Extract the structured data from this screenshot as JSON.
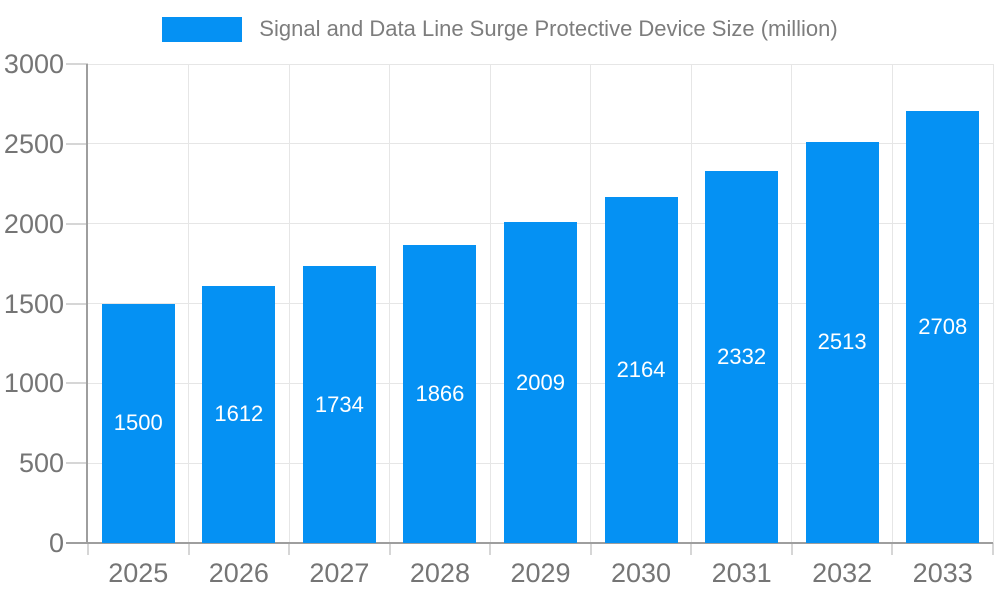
{
  "chart_data": {
    "type": "bar",
    "title": "Signal and Data Line Surge Protective Device Size (million)",
    "legend_label": "Signal and Data Line Surge Protective Device Size (million)",
    "legend_position": "top-center",
    "categories": [
      "2025",
      "2026",
      "2027",
      "2028",
      "2029",
      "2030",
      "2031",
      "2032",
      "2033"
    ],
    "values": [
      1500,
      1612,
      1734,
      1866,
      2009,
      2164,
      2332,
      2513,
      2708
    ],
    "xlabel": "",
    "ylabel": "",
    "ylim": [
      0,
      3000
    ],
    "yticks": [
      0,
      500,
      1000,
      1500,
      2000,
      2500,
      3000
    ],
    "grid": "horizontal-and-vertical",
    "bar_value_labels": "white, centered vertically inside bars"
  },
  "colors": {
    "bar": "#0591f3",
    "grid": "#e6e6e6",
    "axis": "#9e9e9e",
    "tick": "#d6d6d6",
    "axis_label": "#757575",
    "legend_text": "#7d7d7d",
    "bar_label": "#ffffff",
    "background": "#ffffff"
  }
}
